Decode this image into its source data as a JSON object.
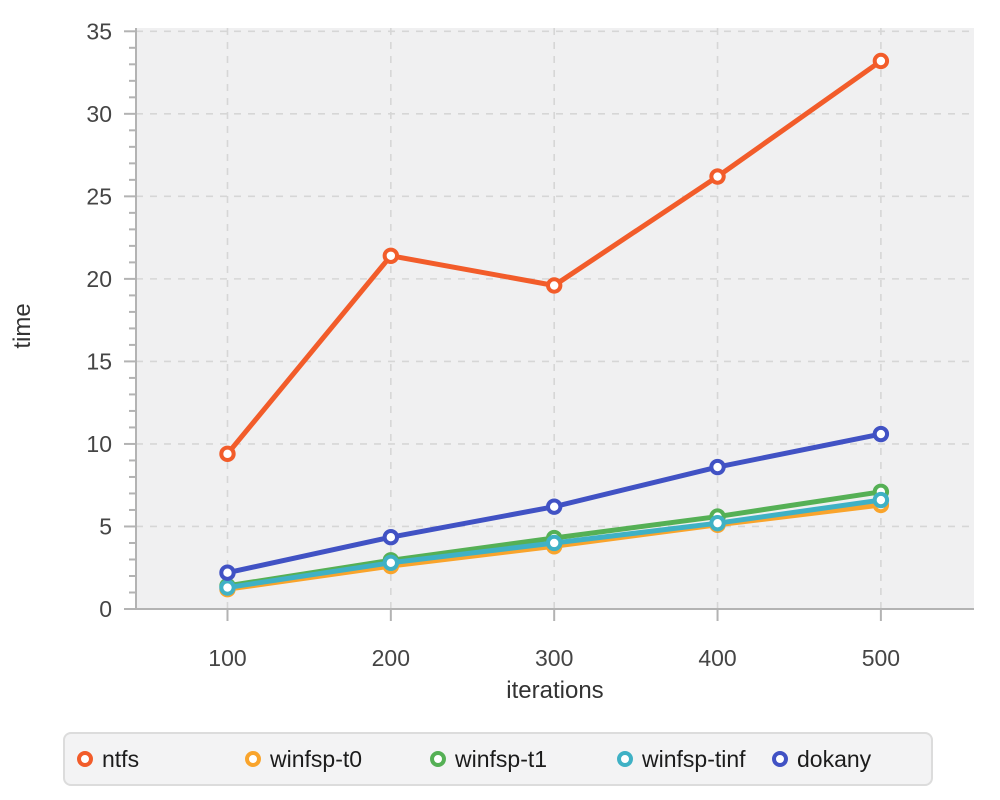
{
  "chart_data": {
    "type": "line",
    "title": "",
    "xlabel": "iterations",
    "ylabel": "time",
    "x": [
      100,
      200,
      300,
      400,
      500
    ],
    "series": [
      {
        "name": "ntfs",
        "color": "#f25c2a",
        "values": [
          9.4,
          21.4,
          19.6,
          26.2,
          33.2
        ]
      },
      {
        "name": "winfsp-t0",
        "color": "#f9a42c",
        "values": [
          1.2,
          2.6,
          3.8,
          5.1,
          6.3
        ]
      },
      {
        "name": "winfsp-t1",
        "color": "#55b055",
        "values": [
          1.4,
          2.95,
          4.3,
          5.6,
          7.1
        ]
      },
      {
        "name": "winfsp-tinf",
        "color": "#3fb1c5",
        "values": [
          1.3,
          2.8,
          4.0,
          5.2,
          6.6
        ]
      },
      {
        "name": "dokany",
        "color": "#4152c4",
        "values": [
          2.2,
          4.35,
          6.2,
          8.6,
          10.6
        ]
      }
    ],
    "x_ticks": [
      100,
      200,
      300,
      400,
      500
    ],
    "y_ticks": [
      0,
      5,
      10,
      15,
      20,
      25,
      30,
      35
    ],
    "y_minor_step": 1,
    "xlim": [
      44,
      557
    ],
    "ylim": [
      0,
      35.2
    ],
    "grid": true,
    "legend_position": "bottom",
    "marker": "open-circle",
    "colors": {
      "plot_bg": "#f0f0f1",
      "grid": "#d6d6d6",
      "axis": "#b3b3b3",
      "tick_label": "#454545",
      "axis_title": "#333333",
      "marker_fill": "#ffffff"
    }
  },
  "legend": {
    "offsets": [
      12,
      180,
      365,
      552,
      707
    ]
  }
}
